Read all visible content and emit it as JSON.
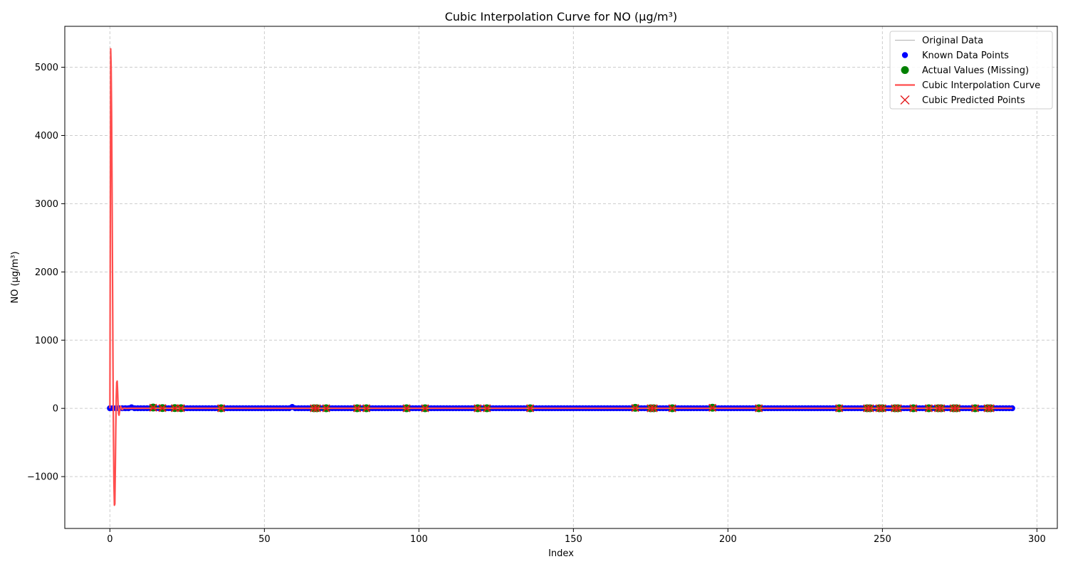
{
  "chart_data": {
    "type": "line",
    "title": "Cubic Interpolation Curve for NO (µg/m³)",
    "xlabel": "Index",
    "ylabel": "NO (µg/m³)",
    "xlim": [
      -14.6,
      306.6
    ],
    "ylim": [
      -1760,
      5600
    ],
    "xticks": [
      0,
      50,
      100,
      150,
      200,
      250,
      300
    ],
    "yticks": [
      -1000,
      0,
      1000,
      2000,
      3000,
      4000,
      5000
    ],
    "ytick_labels": [
      "−1000",
      "0",
      "1000",
      "2000",
      "3000",
      "4000",
      "5000"
    ],
    "grid": true,
    "legend_position": "top-right",
    "legend": [
      {
        "label": "Original Data",
        "kind": "line",
        "color": "#b0b0b0"
      },
      {
        "label": "Known Data Points",
        "kind": "dot",
        "color": "#0000ff"
      },
      {
        "label": "Actual Values (Missing)",
        "kind": "dot-large",
        "color": "#008000"
      },
      {
        "label": "Cubic Interpolation Curve",
        "kind": "line-thick",
        "color": "#ff4d4d"
      },
      {
        "label": "Cubic Predicted Points",
        "kind": "x",
        "color": "#e31a1c"
      }
    ],
    "series": [
      {
        "name": "Known Data Points",
        "color": "#0000ff",
        "x_range": [
          0,
          292
        ],
        "default_y": 2,
        "overrides": [
          [
            7,
            15
          ],
          [
            21,
            8
          ],
          [
            59,
            20
          ]
        ]
      },
      {
        "name": "Actual Values (Missing)",
        "color": "#008000",
        "x": [
          14,
          17,
          21,
          23,
          36,
          66,
          67,
          70,
          80,
          83,
          96,
          102,
          119,
          122,
          136,
          170,
          175,
          176,
          182,
          195,
          210,
          236,
          245,
          246,
          249,
          250,
          254,
          255,
          260,
          265,
          268,
          269,
          273,
          274,
          280,
          284,
          285
        ],
        "y": [
          12,
          5,
          4,
          3,
          2,
          2,
          2,
          2,
          2,
          2,
          2,
          2,
          2,
          2,
          2,
          8,
          2,
          2,
          2,
          10,
          2,
          2,
          2,
          2,
          2,
          2,
          2,
          2,
          2,
          2,
          2,
          2,
          2,
          2,
          2,
          2,
          2
        ]
      },
      {
        "name": "Cubic Predicted Points",
        "color": "#e31a1c",
        "x": [
          14,
          17,
          21,
          23,
          36,
          66,
          67,
          70,
          80,
          83,
          96,
          102,
          119,
          122,
          136,
          170,
          175,
          176,
          182,
          195,
          210,
          236,
          245,
          246,
          249,
          250,
          254,
          255,
          260,
          265,
          268,
          269,
          273,
          274,
          280,
          284,
          285
        ],
        "y": [
          10,
          4,
          3,
          3,
          2,
          2,
          2,
          2,
          2,
          2,
          2,
          2,
          2,
          2,
          2,
          6,
          2,
          2,
          2,
          8,
          2,
          2,
          2,
          2,
          2,
          2,
          2,
          2,
          2,
          2,
          2,
          2,
          2,
          2,
          2,
          2,
          2
        ]
      },
      {
        "name": "Cubic Interpolation Curve",
        "color": "#ff4d4d",
        "x": [
          0,
          0.25,
          0.4,
          0.55,
          0.7,
          0.85,
          1.0,
          1.15,
          1.3,
          1.45,
          1.6,
          1.75,
          1.9,
          2.05,
          2.2,
          2.35,
          2.5,
          2.65,
          2.8,
          2.95,
          3.1,
          3.25,
          3.4,
          3.6,
          3.8,
          4.0,
          4.3,
          4.7,
          5.2,
          6,
          292
        ],
        "y": [
          0,
          5270,
          5000,
          4300,
          3200,
          1900,
          600,
          -400,
          -1100,
          -1420,
          -1400,
          -900,
          -300,
          150,
          380,
          400,
          250,
          50,
          -80,
          -100,
          -60,
          -10,
          30,
          20,
          0,
          -20,
          0,
          5,
          0,
          2,
          2
        ]
      }
    ]
  }
}
